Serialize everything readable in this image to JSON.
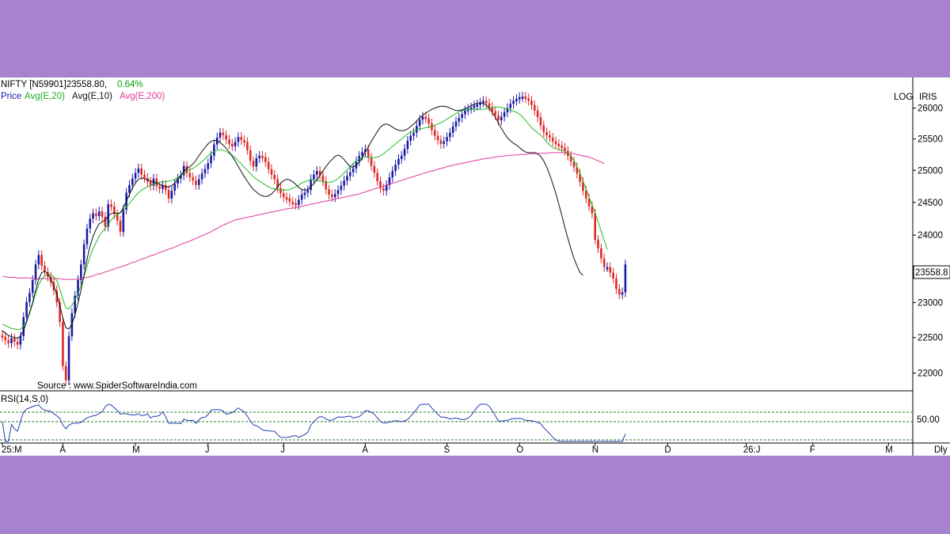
{
  "header": {
    "symbol": "NIFTY [N59901]23558.80,",
    "change": "0.64%",
    "change_color": "#00a000",
    "legend": [
      {
        "label": "Price",
        "color": "#1a1aa6"
      },
      {
        "label": "Avg(E,20)",
        "color": "#22bb22"
      },
      {
        "label": "Avg(E,10)",
        "color": "#111111"
      },
      {
        "label": "Avg(E,200)",
        "color": "#e0399a"
      }
    ]
  },
  "toolbar": {
    "log_label": "LOG",
    "iris_label": "IRIS",
    "period_label": "Dly"
  },
  "source_text": "Source : www.SpiderSoftwareIndia.com",
  "price_tag": "23558.8",
  "rsi": {
    "label": "RSI(14,S,0)",
    "level_label": "50.00",
    "color": "#1f3fb0"
  },
  "colors": {
    "up": "#1a1aa6",
    "down": "#e02828"
  },
  "chart_data": {
    "type": "candlestick",
    "scale": "log",
    "ylim": [
      21800,
      26400
    ],
    "y_ticks": [
      26000,
      25500,
      25000,
      24500,
      24000,
      23000,
      22500,
      22000
    ],
    "y_tick_labels": [
      "26000",
      "25500",
      "25000",
      "24500",
      "24000",
      "23000",
      "22500",
      "22000"
    ],
    "x_ticks": [
      "25:M",
      "A",
      "M",
      "J",
      "J",
      "A",
      "S",
      "O",
      "N",
      "D",
      "26:J",
      "F",
      "M"
    ],
    "x_tick_index": [
      0,
      20,
      44,
      68,
      93,
      120,
      147,
      171,
      196,
      220,
      246,
      268,
      293
    ],
    "close_last": 23558.8,
    "close": [
      22510,
      22460,
      22420,
      22490,
      22440,
      22400,
      22520,
      22790,
      23010,
      23140,
      23330,
      23560,
      23700,
      23540,
      23450,
      23380,
      23300,
      23180,
      23000,
      22720,
      22100,
      21900,
      22520,
      22850,
      23100,
      23330,
      23560,
      23860,
      24100,
      24250,
      24330,
      24290,
      24360,
      24280,
      24130,
      24470,
      24440,
      24320,
      24220,
      24050,
      24390,
      24650,
      24770,
      24870,
      24960,
      25030,
      24930,
      24880,
      24820,
      24760,
      24870,
      24750,
      24710,
      24770,
      24690,
      24560,
      24680,
      24790,
      24870,
      24920,
      25070,
      24960,
      24890,
      24840,
      24770,
      24860,
      24950,
      25020,
      25110,
      25230,
      25410,
      25520,
      25600,
      25560,
      25490,
      25420,
      25380,
      25450,
      25530,
      25480,
      25450,
      25320,
      25150,
      25060,
      25190,
      25230,
      25210,
      25130,
      25020,
      24930,
      24860,
      24720,
      24640,
      24580,
      24560,
      24510,
      24490,
      24460,
      24540,
      24620,
      24650,
      24690,
      24860,
      24930,
      24990,
      24920,
      24830,
      24700,
      24620,
      24580,
      24630,
      24690,
      24760,
      24840,
      24910,
      24970,
      25030,
      25140,
      25230,
      25290,
      25330,
      25200,
      25070,
      24960,
      24830,
      24720,
      24680,
      24770,
      24890,
      24990,
      25090,
      25180,
      25230,
      25340,
      25470,
      25550,
      25600,
      25710,
      25810,
      25860,
      25830,
      25750,
      25640,
      25550,
      25480,
      25420,
      25460,
      25530,
      25600,
      25700,
      25780,
      25840,
      25900,
      25960,
      25990,
      26010,
      26040,
      26060,
      26090,
      26120,
      26080,
      26020,
      25950,
      25880,
      25800,
      25860,
      25930,
      26000,
      26070,
      26120,
      26150,
      26180,
      26190,
      26160,
      26120,
      26050,
      25960,
      25850,
      25720,
      25610,
      25560,
      25520,
      25460,
      25420,
      25390,
      25360,
      25310,
      25230,
      25140,
      25050,
      24950,
      24820,
      24680,
      24560,
      24440,
      24330,
      23930,
      23800,
      23650,
      23520,
      23520,
      23440,
      23350,
      23200,
      23120,
      23150,
      23560
    ],
    "ema20": [
      22690,
      22670,
      22650,
      22630,
      22620,
      22610,
      22620,
      22660,
      22740,
      22840,
      22980,
      23130,
      23260,
      23340,
      23390,
      23410,
      23410,
      23380,
      23320,
      23200,
      23050,
      22920,
      22910,
      22960,
      23040,
      23130,
      23250,
      23380,
      23530,
      23680,
      23800,
      23890,
      23980,
      24050,
      24100,
      24160,
      24230,
      24280,
      24310,
      24340,
      24380,
      24430,
      24480,
      24540,
      24600,
      24650,
      24690,
      24720,
      24740,
      24760,
      24780,
      24800,
      24810,
      24820,
      24820,
      24830,
      24840,
      24860,
      24890,
      24920,
      24960,
      24990,
      25010,
      25030,
      25060,
      25100,
      25140,
      25180,
      25230,
      25270,
      25300,
      25320,
      25330,
      25320,
      25300,
      25270,
      25240,
      25200,
      25150,
      25100,
      25050,
      25000,
      24950,
      24900,
      24860,
      24830,
      24800,
      24770,
      24740,
      24720,
      24710,
      24700,
      24690,
      24690,
      24690,
      24700,
      24720,
      24740,
      24770,
      24800,
      24820,
      24840,
      24850,
      24850,
      24840,
      24830,
      24820,
      24810,
      24810,
      24820,
      24840,
      24870,
      24910,
      24960,
      25010,
      25060,
      25110,
      25150,
      25180,
      25200,
      25210,
      25210,
      25200,
      25200,
      25210,
      25230,
      25260,
      25300,
      25340,
      25380,
      25420,
      25460,
      25500,
      25540,
      25580,
      25610,
      25630,
      25650,
      25660,
      25670,
      25680,
      25690,
      25700,
      25720,
      25740,
      25760,
      25790,
      25820,
      25850,
      25880,
      25910,
      25940,
      25960,
      25970,
      25980,
      25980,
      25980,
      25980,
      25980,
      25980,
      25990,
      26000,
      26010,
      26020,
      26020,
      26010,
      26000,
      25990,
      25970,
      25950,
      25930,
      25900,
      25860,
      25800,
      25740,
      25680,
      25640,
      25600,
      25560,
      25510,
      25450,
      25400,
      25360,
      25340,
      25330,
      25320,
      25300,
      25270,
      25220,
      25150,
      25060,
      24950,
      24830,
      24710,
      24580,
      24460,
      24340,
      24200,
      24060,
      23920,
      23780
    ],
    "ema10": [
      22600,
      22560,
      22530,
      22510,
      22500,
      22490,
      22520,
      22600,
      22720,
      22860,
      23000,
      23180,
      23340,
      23440,
      23460,
      23420,
      23350,
      23240,
      23120,
      22960,
      22780,
      22640,
      22620,
      22690,
      22820,
      22990,
      23180,
      23400,
      23640,
      23840,
      23980,
      24090,
      24170,
      24200,
      24230,
      24290,
      24330,
      24340,
      24330,
      24340,
      24420,
      24520,
      24620,
      24720,
      24800,
      24860,
      24880,
      24870,
      24850,
      24830,
      24820,
      24800,
      24780,
      24760,
      24740,
      24740,
      24760,
      24800,
      24860,
      24920,
      24980,
      25030,
      25060,
      25100,
      25160,
      25230,
      25300,
      25360,
      25420,
      25460,
      25480,
      25470,
      25440,
      25400,
      25350,
      25290,
      25220,
      25150,
      25060,
      24980,
      24900,
      24830,
      24760,
      24700,
      24660,
      24620,
      24600,
      24590,
      24600,
      24630,
      24680,
      24740,
      24800,
      24840,
      24860,
      24850,
      24820,
      24780,
      24730,
      24700,
      24690,
      24700,
      24740,
      24790,
      24850,
      24920,
      24990,
      25060,
      25120,
      25170,
      25220,
      25240,
      25220,
      25170,
      25110,
      25060,
      25050,
      25080,
      25130,
      25200,
      25290,
      25370,
      25460,
      25540,
      25620,
      25690,
      25730,
      25740,
      25720,
      25690,
      25660,
      25640,
      25630,
      25640,
      25660,
      25700,
      25740,
      25790,
      25840,
      25880,
      25920,
      25950,
      25980,
      26000,
      26020,
      26030,
      26030,
      26020,
      26000,
      25980,
      25960,
      25960,
      25970,
      25990,
      26010,
      26040,
      26060,
      26080,
      26090,
      26080,
      26050,
      26000,
      25930,
      25850,
      25760,
      25670,
      25590,
      25520,
      25470,
      25430,
      25400,
      25360,
      25320,
      25290,
      25280,
      25280,
      25280,
      25260,
      25220,
      25150,
      25050,
      24930,
      24790,
      24640,
      24470,
      24300,
      24120,
      23950,
      23790,
      23650,
      23540,
      23440,
      23400
    ],
    "ema200": [
      23380,
      23380,
      23370,
      23370,
      23370,
      23360,
      23360,
      23360,
      23360,
      23360,
      23350,
      23350,
      23350,
      23350,
      23350,
      23350,
      23350,
      23350,
      23350,
      23350,
      23340,
      23340,
      23340,
      23340,
      23340,
      23340,
      23350,
      23360,
      23370,
      23380,
      23390,
      23410,
      23420,
      23430,
      23450,
      23460,
      23480,
      23490,
      23510,
      23520,
      23540,
      23550,
      23570,
      23590,
      23600,
      23620,
      23640,
      23650,
      23670,
      23690,
      23700,
      23720,
      23740,
      23750,
      23770,
      23790,
      23800,
      23820,
      23840,
      23860,
      23880,
      23890,
      23910,
      23930,
      23950,
      23970,
      23990,
      24010,
      24030,
      24050,
      24080,
      24100,
      24130,
      24150,
      24170,
      24190,
      24210,
      24230,
      24240,
      24250,
      24260,
      24270,
      24280,
      24290,
      24300,
      24310,
      24320,
      24330,
      24340,
      24350,
      24360,
      24370,
      24380,
      24390,
      24400,
      24410,
      24410,
      24420,
      24430,
      24440,
      24450,
      24460,
      24470,
      24480,
      24490,
      24500,
      24510,
      24520,
      24530,
      24540,
      24550,
      24560,
      24570,
      24580,
      24590,
      24600,
      24610,
      24620,
      24630,
      24650,
      24660,
      24680,
      24690,
      24710,
      24720,
      24740,
      24750,
      24770,
      24780,
      24800,
      24810,
      24830,
      24840,
      24860,
      24870,
      24890,
      24900,
      24920,
      24930,
      24950,
      24960,
      24980,
      24990,
      25000,
      25020,
      25030,
      25040,
      25060,
      25070,
      25080,
      25090,
      25100,
      25110,
      25120,
      25130,
      25140,
      25150,
      25160,
      25170,
      25180,
      25190,
      25190,
      25200,
      25210,
      25220,
      25220,
      25230,
      25230,
      25240,
      25240,
      25240,
      25250,
      25250,
      25250,
      25260,
      25260,
      25260,
      25270,
      25270,
      25270,
      25270,
      25280,
      25280,
      25280,
      25280,
      25280,
      25280,
      25270,
      25270,
      25260,
      25250,
      25240,
      25230,
      25220,
      25210,
      25190,
      25170,
      25150,
      25130,
      25110
    ]
  }
}
